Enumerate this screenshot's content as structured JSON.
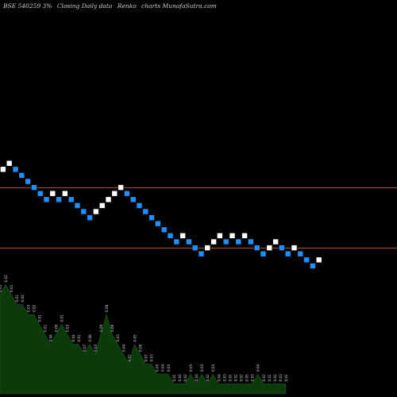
{
  "caption": {
    "symbol": "BSE 540259 3%",
    "mode": "Closing Daily data",
    "type": "Renko",
    "site": "charts MunafaSutra.com"
  },
  "colors": {
    "background": "#000000",
    "up_brick": "#ffffff",
    "down_brick": "#1e90ff",
    "reference_line": "#b05a1a",
    "volume_fill": "#0b3a0b",
    "volume_label": "#d0d0d0"
  },
  "chart_data": {
    "type": "renko",
    "title": "",
    "xlabel": "",
    "ylabel": "",
    "grid": false,
    "brick_size_pct": 3,
    "ylim": [
      0,
      38
    ],
    "reference_lines": [
      27.5,
      17.5
    ],
    "bricks": [
      {
        "dir": "up",
        "level": 30
      },
      {
        "dir": "up",
        "level": 31
      },
      {
        "dir": "down",
        "level": 30
      },
      {
        "dir": "down",
        "level": 29
      },
      {
        "dir": "down",
        "level": 28
      },
      {
        "dir": "down",
        "level": 27
      },
      {
        "dir": "down",
        "level": 26
      },
      {
        "dir": "down",
        "level": 25
      },
      {
        "dir": "up",
        "level": 26
      },
      {
        "dir": "down",
        "level": 25
      },
      {
        "dir": "up",
        "level": 26
      },
      {
        "dir": "down",
        "level": 25
      },
      {
        "dir": "down",
        "level": 24
      },
      {
        "dir": "down",
        "level": 23
      },
      {
        "dir": "down",
        "level": 22
      },
      {
        "dir": "up",
        "level": 23
      },
      {
        "dir": "up",
        "level": 24
      },
      {
        "dir": "up",
        "level": 25
      },
      {
        "dir": "up",
        "level": 26
      },
      {
        "dir": "up",
        "level": 27
      },
      {
        "dir": "down",
        "level": 26
      },
      {
        "dir": "down",
        "level": 25
      },
      {
        "dir": "down",
        "level": 24
      },
      {
        "dir": "down",
        "level": 23
      },
      {
        "dir": "down",
        "level": 22
      },
      {
        "dir": "down",
        "level": 21
      },
      {
        "dir": "down",
        "level": 20
      },
      {
        "dir": "down",
        "level": 19
      },
      {
        "dir": "down",
        "level": 18
      },
      {
        "dir": "up",
        "level": 19
      },
      {
        "dir": "down",
        "level": 18
      },
      {
        "dir": "down",
        "level": 17
      },
      {
        "dir": "down",
        "level": 16
      },
      {
        "dir": "up",
        "level": 17
      },
      {
        "dir": "up",
        "level": 18
      },
      {
        "dir": "up",
        "level": 19
      },
      {
        "dir": "down",
        "level": 18
      },
      {
        "dir": "up",
        "level": 19
      },
      {
        "dir": "down",
        "level": 18
      },
      {
        "dir": "up",
        "level": 19
      },
      {
        "dir": "down",
        "level": 18
      },
      {
        "dir": "down",
        "level": 17
      },
      {
        "dir": "down",
        "level": 16
      },
      {
        "dir": "up",
        "level": 17
      },
      {
        "dir": "up",
        "level": 18
      },
      {
        "dir": "down",
        "level": 17
      },
      {
        "dir": "down",
        "level": 16
      },
      {
        "dir": "up",
        "level": 17
      },
      {
        "dir": "down",
        "level": 16
      },
      {
        "dir": "down",
        "level": 15
      },
      {
        "dir": "down",
        "level": 14
      },
      {
        "dir": "up",
        "level": 15
      }
    ],
    "volume": {
      "type": "area",
      "values": [
        10,
        11,
        10,
        9,
        9,
        8,
        8,
        7,
        6,
        5,
        6,
        7,
        6,
        5,
        5,
        4,
        5,
        4,
        6,
        8,
        6,
        5,
        4,
        3,
        5,
        4,
        3,
        3,
        2,
        2,
        2,
        1,
        1,
        1,
        2,
        1,
        2,
        1,
        2,
        1,
        1,
        1,
        1,
        1,
        1,
        1,
        2,
        1,
        1,
        1,
        1,
        1
      ],
      "labels": [
        "0.01",
        "0.02",
        "0.01",
        "0.01",
        "0.04",
        "0.03",
        "0.02",
        "0.01",
        "0.01",
        "0.08",
        "0.09",
        "0.01",
        "0.03",
        "0.04",
        "0.01",
        "0.07",
        "0.08",
        "0.03",
        "0.09",
        "0.08",
        "0.06",
        "0.03",
        "0.04",
        "0.02",
        "0.05",
        "0.09",
        "0.07",
        "0.03",
        "0.05",
        "0.04",
        "0.03",
        "0.01",
        "0.04",
        "0.02",
        "0.05",
        "0.04",
        "0.03",
        "0.02",
        "0.03",
        "0.04",
        "0.03",
        "0.01",
        "0.02",
        "0.02",
        "0.05",
        "0.03",
        "0.04",
        "0.02",
        "0.01",
        "0.02",
        "0.03",
        "0.01"
      ]
    }
  }
}
